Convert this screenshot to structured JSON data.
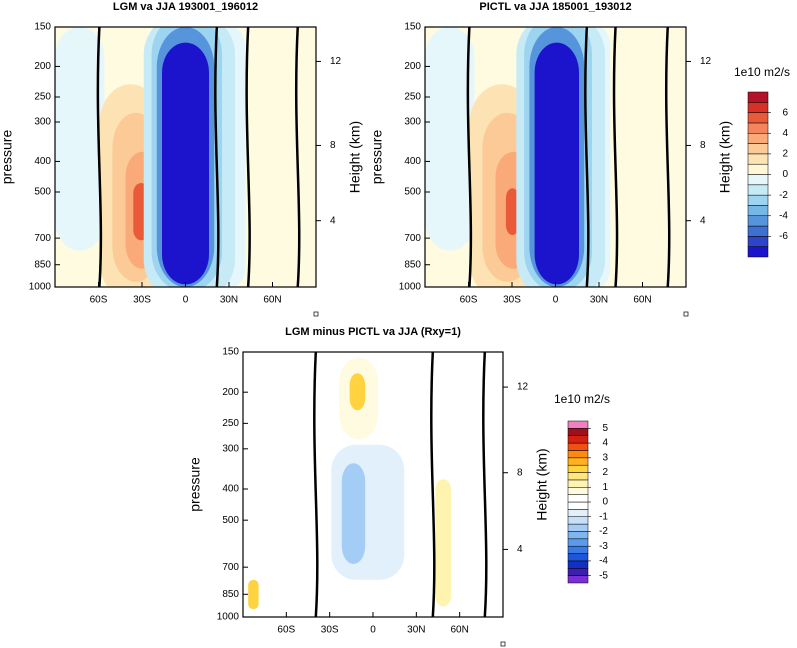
{
  "chart_data": [
    {
      "type": "contour",
      "title": "LGM va JJA 193001_196012",
      "ylabel": "pressure",
      "y2label": "Height (km)",
      "xlim": [
        -90,
        90
      ],
      "xticks": [
        {
          "value": -60,
          "label": "60S"
        },
        {
          "value": -30,
          "label": "30S"
        },
        0,
        {
          "value": 30,
          "label": "30N"
        },
        {
          "value": 60,
          "label": "60N"
        }
      ],
      "ylim": [
        1000,
        150
      ],
      "y_scale": "log",
      "yticks": [
        150,
        200,
        250,
        300,
        400,
        500,
        700,
        850,
        1000
      ],
      "y2ticks": [
        4,
        8,
        12
      ]
    },
    {
      "type": "contour",
      "title": "PICTL va JJA 185001_193012",
      "ylabel": "pressure",
      "y2label": "Height (km)",
      "xlim": [
        -90,
        90
      ],
      "xticks": [
        {
          "value": -60,
          "label": "60S"
        },
        {
          "value": -30,
          "label": "30S"
        },
        0,
        {
          "value": 30,
          "label": "30N"
        },
        {
          "value": 60,
          "label": "60N"
        }
      ],
      "ylim": [
        1000,
        150
      ],
      "y_scale": "log",
      "yticks": [
        150,
        200,
        250,
        300,
        400,
        500,
        700,
        850,
        1000
      ],
      "y2ticks": [
        4,
        8,
        12
      ],
      "colorbar": {
        "label": "1e10 m2/s",
        "lim": [
          -8,
          8
        ],
        "ticks": [
          6,
          4,
          2,
          0,
          -2,
          -4,
          -6
        ],
        "colors": [
          "#1c13cc",
          "#2f45c9",
          "#3f6fd0",
          "#5694dc",
          "#75b8e8",
          "#9dd4f0",
          "#c6ebf7",
          "#e6f7fb",
          "#fff6d6",
          "#fde3b4",
          "#fcca96",
          "#f9aa78",
          "#f4845e",
          "#e85a3a",
          "#d73027",
          "#b4122a"
        ]
      }
    },
    {
      "type": "contour",
      "title": "LGM minus PICTL va JJA (Rxy=1)",
      "ylabel": "pressure",
      "y2label": "Height (km)",
      "xlim": [
        -90,
        90
      ],
      "xticks": [
        {
          "value": -60,
          "label": "60S"
        },
        {
          "value": -30,
          "label": "30S"
        },
        0,
        {
          "value": 30,
          "label": "30N"
        },
        {
          "value": 60,
          "label": "60N"
        }
      ],
      "ylim": [
        1000,
        150
      ],
      "y_scale": "log",
      "yticks": [
        150,
        200,
        250,
        300,
        400,
        500,
        700,
        850,
        1000
      ],
      "y2ticks": [
        4,
        8,
        12
      ],
      "colorbar": {
        "label": "1e10 m2/s",
        "lim": [
          -5.5,
          5.5
        ],
        "ticks": [
          5,
          4,
          3,
          2,
          1,
          0,
          -1,
          -2,
          -3,
          -4,
          -5
        ],
        "colors": [
          "#7a2fd6",
          "#3a1fb0",
          "#1230c8",
          "#1f55d8",
          "#3a7ae4",
          "#5a9bed",
          "#7fb6f2",
          "#a4cdf5",
          "#c6e0f8",
          "#e2f0fb",
          "#ffffff",
          "#ffffff",
          "#fffbe0",
          "#fff3b0",
          "#ffe680",
          "#ffd23f",
          "#ffb020",
          "#ff8a10",
          "#f05010",
          "#d42010",
          "#a0101a",
          "#f080c0"
        ]
      }
    }
  ]
}
